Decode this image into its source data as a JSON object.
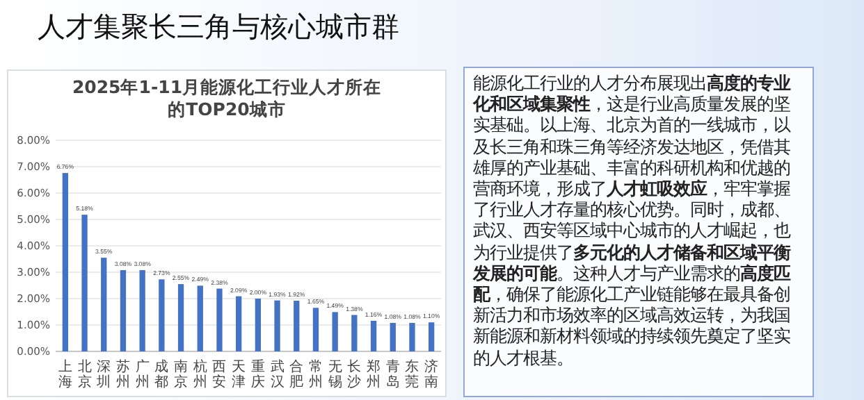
{
  "chart_data": {
    "type": "bar",
    "title": "人才集聚长三角与核心城市群",
    "subtitle": "2025年1-11月能源化工行业人才所在的TOP20城市",
    "categories": [
      "上海",
      "北京",
      "深圳",
      "苏州",
      "广州",
      "成都",
      "南京",
      "杭州",
      "西安",
      "天津",
      "重庆",
      "武汉",
      "合肥",
      "常州",
      "无锡",
      "长沙",
      "郑州",
      "青岛",
      "东莞",
      "济南"
    ],
    "values": [
      6.76,
      5.18,
      3.55,
      3.08,
      3.08,
      2.73,
      2.55,
      2.49,
      2.38,
      2.09,
      2.0,
      1.93,
      1.92,
      1.65,
      1.49,
      1.38,
      1.16,
      1.08,
      1.08,
      1.1
    ],
    "value_labels": [
      "6.76%",
      "5.18%",
      "3.55%",
      "3.08%",
      "3.08%",
      "2.73%",
      "2.55%",
      "2.49%",
      "2.38%",
      "2.09%",
      "2.00%",
      "1.93%",
      "1.92%",
      "1.65%",
      "1.49%",
      "1.38%",
      "1.16%",
      "1.08%",
      "1.08%",
      "1.10%"
    ],
    "color": "#4472c4",
    "ylim": [
      0,
      8
    ],
    "yticks": [
      {
        "value": 0,
        "label": "0.00%"
      },
      {
        "value": 1,
        "label": "1.00%"
      },
      {
        "value": 2,
        "label": "2.00%"
      },
      {
        "value": 3,
        "label": "3.00%"
      },
      {
        "value": 4,
        "label": "4.00%"
      },
      {
        "value": 5,
        "label": "5.00%"
      },
      {
        "value": 6,
        "label": "6.00%"
      },
      {
        "value": 7,
        "label": "7.00%"
      },
      {
        "value": 8,
        "label": "8.00%"
      }
    ],
    "grid": "y",
    "annotations": [
      "能源化工行业的人才分布展现出**高度的专业化和区域集聚性**，这是行业高质量发展的坚实基础。以上海、北京为首的一线城市，以及长三角和珠三角等经济发达地区，凭借其雄厚的产业基础、丰富的科研机构和优越的营商环境，形成了**人才虹吸效应**，牢牢掌握了行业人才存量的核心优势。同时，成都、武汉、西安等区域中心城市的人才崛起，也为行业提供了**多元化的人才储备和区域平衡发展的可能**。这种人才与产业需求的**高度匹配**，确保了能源化工产业链能够在最具备创新活力和市场效率的区域高效运转，为我国新能源和新材料领域的持续领先奠定了坚实的人才根基。"
    ]
  }
}
